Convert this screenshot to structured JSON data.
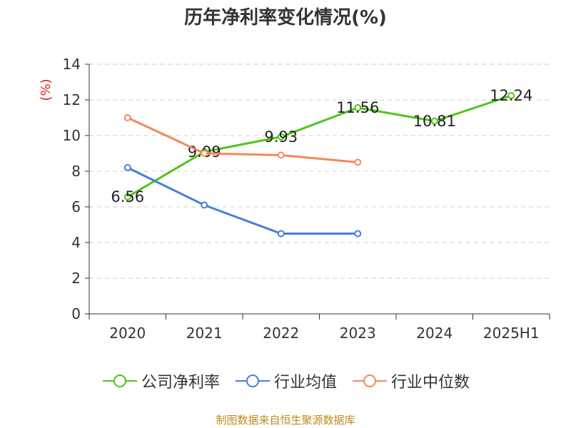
{
  "title": "历年净利率变化情况(%)",
  "source_note": "制图数据来自恒生聚源数据库",
  "chart_data": {
    "type": "line",
    "title": "历年净利率变化情况(%)",
    "ylabel": "(%)",
    "xlabel": "",
    "categories": [
      "2020",
      "2021",
      "2022",
      "2023",
      "2024",
      "2025H1"
    ],
    "ylim": [
      0,
      14
    ],
    "yticks": [
      0,
      2,
      4,
      6,
      8,
      10,
      12,
      14
    ],
    "grid": true,
    "legend_position": "bottom",
    "series": [
      {
        "name": "公司净利率",
        "color": "#52c41a",
        "values": [
          6.56,
          9.09,
          9.93,
          11.56,
          10.81,
          12.24
        ],
        "labels": [
          "6.56",
          "9.09",
          "9.93",
          "11.56",
          "10.81",
          "12.24"
        ]
      },
      {
        "name": "行业均值",
        "color": "#4a7fd6",
        "values": [
          8.2,
          6.1,
          4.5,
          4.5,
          null,
          null
        ]
      },
      {
        "name": "行业中位数",
        "color": "#f4895a",
        "values": [
          11.0,
          9.0,
          8.9,
          8.5,
          null,
          null
        ]
      }
    ]
  }
}
